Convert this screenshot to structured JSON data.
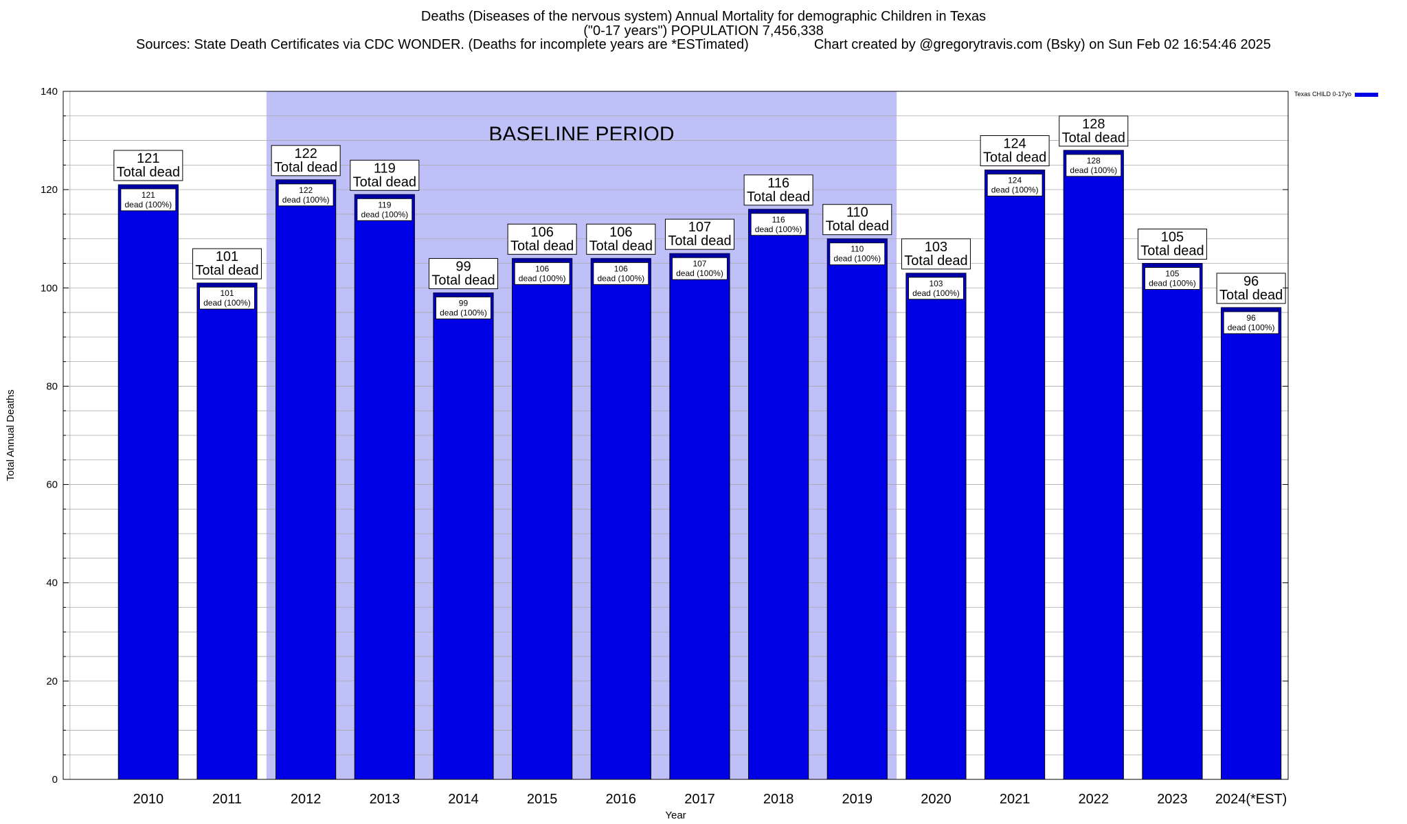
{
  "header": {
    "title": "Deaths (Diseases of the nervous system) Annual Mortality for demographic Children in Texas",
    "subtitle": "(\"0-17 years\") POPULATION 7,456,338",
    "sources": "Sources: State Death Certificates via CDC WONDER. (Deaths for incomplete years are *ESTimated)",
    "credit": "Chart created by @gregorytravis.com (Bsky) on Sun Feb 02 16:54:46 2025"
  },
  "chart_data": {
    "type": "bar",
    "categories": [
      "2010",
      "2011",
      "2012",
      "2013",
      "2014",
      "2015",
      "2016",
      "2017",
      "2018",
      "2019",
      "2020",
      "2021",
      "2022",
      "2023",
      "2024(*EST)"
    ],
    "series": [
      {
        "name": "Texas CHILD 0-17yo",
        "values": [
          121,
          101,
          122,
          119,
          99,
          106,
          106,
          107,
          116,
          110,
          103,
          124,
          128,
          105,
          96
        ],
        "color": "#0000e6"
      }
    ],
    "top_label_suffix": "Total dead",
    "inner_labels": [
      "dead (100%)",
      "dead (100%)",
      "dead (100%)",
      "dead (100%)",
      "dead (100%)",
      "dead (100%)",
      "dead (100%)",
      "dead (100%)",
      "dead (100%)",
      "dead (100%)",
      "dead (100%)",
      "dead (100%)",
      "dead (100%)",
      "dead (100%)",
      "dead (100%)"
    ],
    "xlabel": "Year",
    "ylabel": "Total Annual Deaths",
    "ylim": [
      0,
      140
    ],
    "yticks": [
      0,
      20,
      40,
      60,
      80,
      100,
      120,
      140
    ],
    "ytick_labels": [
      "0",
      "20",
      "40",
      "60",
      "80",
      "100",
      "120",
      "140"
    ],
    "minor_grid_step": 5,
    "grid": true,
    "legend_position": "top-right",
    "baseline_period": {
      "label": "BASELINE PERIOD",
      "from": "2012",
      "to": "2019",
      "color": "#c0c0f8"
    }
  }
}
